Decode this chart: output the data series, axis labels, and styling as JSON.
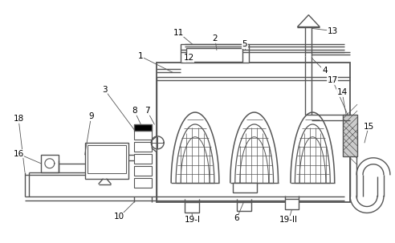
{
  "bg_color": "#ffffff",
  "line_color": "#555555",
  "line_width": 1.0,
  "fig_w": 4.92,
  "fig_h": 3.03,
  "dpi": 100
}
